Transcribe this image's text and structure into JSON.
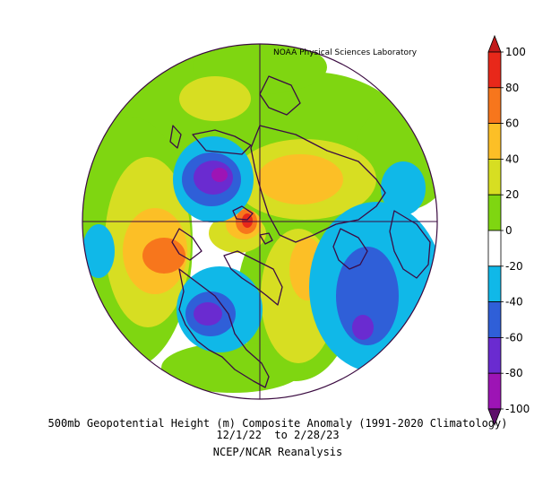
{
  "credit": "NOAA Physical Sciences Laboratory",
  "caption": {
    "line1": "500mb Geopotential Height (m) Composite Anomaly (1991-2020 Climatology)",
    "line2": "12/1/22  to 2/28/23",
    "line3": "NCEP/NCAR Reanalysis"
  },
  "colorbar": {
    "ticks": [
      "100",
      "80",
      "60",
      "40",
      "20",
      "0",
      "-20",
      "-40",
      "-60",
      "-80",
      "-100"
    ],
    "bins": [
      {
        "range": [
          80,
          100
        ],
        "color": "#e8281a"
      },
      {
        "range": [
          60,
          80
        ],
        "color": "#f7761c"
      },
      {
        "range": [
          40,
          60
        ],
        "color": "#fcbf26"
      },
      {
        "range": [
          20,
          40
        ],
        "color": "#d7de22"
      },
      {
        "range": [
          0,
          20
        ],
        "color": "#7fd611"
      },
      {
        "range": [
          -20,
          0
        ],
        "color": "#ffffff"
      },
      {
        "range": [
          -40,
          -20
        ],
        "color": "#10b8e8"
      },
      {
        "range": [
          -60,
          -40
        ],
        "color": "#2f5fd8"
      },
      {
        "range": [
          -80,
          -60
        ],
        "color": "#6a2bd0"
      },
      {
        "range": [
          -100,
          -80
        ],
        "color": "#9d14b5"
      },
      {
        "range": [
          -120,
          -100
        ],
        "color": "#5e0f6a"
      }
    ]
  },
  "colors": {
    "land_outline": "#3b0b45",
    "grid": "#3a0a40",
    "positive_light": "#7fd611",
    "positive_mid": "#d7de22",
    "positive_high": "#fcbf26",
    "positive_strong": "#f7761c",
    "positive_max": "#e8281a",
    "negative_light": "#10b8e8",
    "negative_mid": "#2f5fd8",
    "negative_deep": "#6a2bd0",
    "negative_extreme": "#9d14b5"
  }
}
